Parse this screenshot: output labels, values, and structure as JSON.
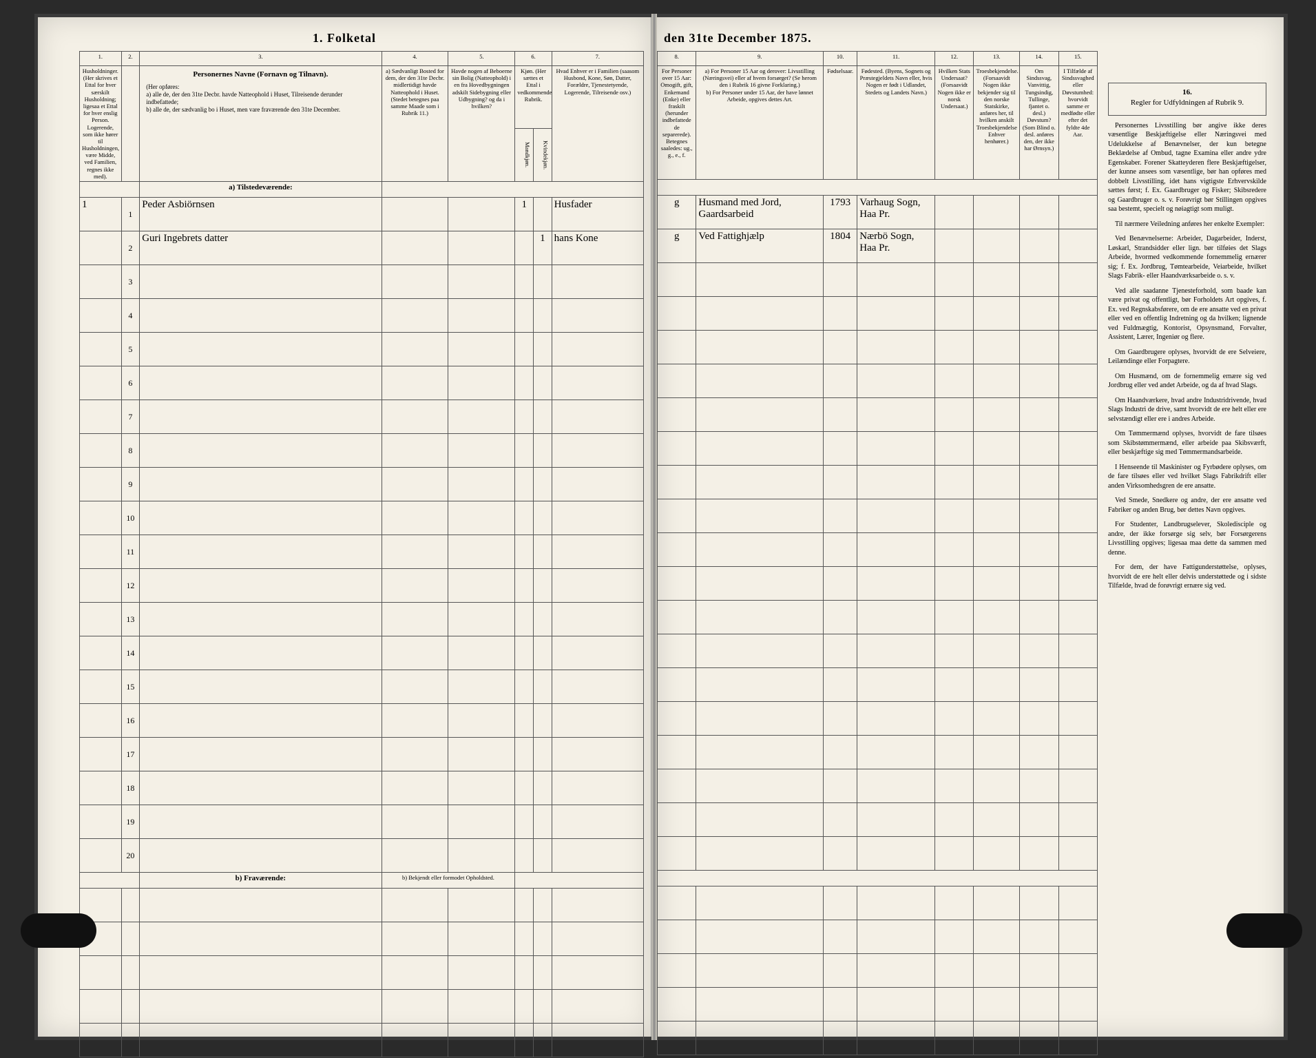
{
  "title_left": "1.  Folketal",
  "title_right": "den 31te December 1875.",
  "columns_left": {
    "c1_num": "1.",
    "c1_head": "Husholdninger. (Her skrives et Ettal for hver særskilt Husholdning; ligesaa et Ettal for hver enslig Person. Logerende, som ikke hører til Husholdningen, være Midde, ved Familien, regnes ikke med).",
    "c2_num": "2.",
    "c2_head": "",
    "c3_num": "3.",
    "c3_head_title": "Personernes Navne (Fornavn og Tilnavn).",
    "c3_head_body": "(Her opføres:\na) alle de, der den 31te Decbr. havde Natteophold i Huset, Tilreisende derunder indbefattede;\nb) alle de, der sædvanlig bo i Huset, men vare fraværende den 31te December.",
    "c4_num": "4.",
    "c4_head": "a) Sædvanligt Bosted for dem, der den 31te Decbr. midlertidigt havde Natteophold i Huset. (Stedet betegnes paa samme Maade som i Rubrik 11.)",
    "c5_num": "5.",
    "c5_head": "Havde nogen af Beboerne sin Bolig (Natteophold) i en fra Hovedbygningen adskilt Sidebygning eller Udbygning? og da i hvilken?",
    "c6_num": "6.",
    "c6_head": "Kjøn. (Her sættes et Ettal i vedkommende Rubrik.",
    "c6_sub_a": "Mandkjøn.",
    "c6_sub_b": "Kvindekjøn.",
    "c7_num": "7.",
    "c7_head": "Hvad Enhver er i Familien (saasom Husbond, Kone, Søn, Datter, Forældre, Tjenestetyende, Logerende, Tilreisende osv.)"
  },
  "columns_right": {
    "c8_num": "8.",
    "c8_head": "For Personer over 15 Aar: Omogift, gift, Enkemand (Enke) eller fraskilt (herunder indbefattede de separerede). Betegnes saaledes: ug., g., e., f.",
    "c9_num": "9.",
    "c9_head": "a) For Personer 15 Aar og derover: Livsstilling (Næringsvei) eller af hvem forsørget? (Se herom den i Rubrik 16 givne Forklaring.)\nb) For Personer under 15 Aar, der have lønnet Arbeide, opgives dettes Art.",
    "c10_num": "10.",
    "c10_head": "Fødselsaar.",
    "c11_num": "11.",
    "c11_head": "Fødested. (Byens, Sognets og Præstegjeldets Navn eller, hvis Nogen er født i Udlandet, Stedets og Landets Navn.)",
    "c12_num": "12.",
    "c12_head": "Hvilken Stats Undersaat? (Forsaavidt Nogen ikke er norsk Undersaat.)",
    "c13_num": "13.",
    "c13_head": "Troesbekjendelse. (Forsaavidt Nogen ikke bekjender sig til den norske Statskirke, anføres her, til hvilken anskilt Troesbekjendelse Enhver henhører.)",
    "c14_num": "14.",
    "c14_head": "Om Sindssvag, Vanvittig, Tungsindig, Tullinge, fjantet o. desl.) Døvstum? (Som Blind o. desl. anføres den, der ikke har Ørnsyn.)",
    "c15_num": "15.",
    "c15_head": "I Tilfælde af Sindssvaghed eller Døvstumhed: hvorvidt samme er medfødte eller efter det fyldte 4de Aar."
  },
  "section_a": "a) Tilstedeværende:",
  "section_b": "b) Fraværende:",
  "section_b_note": "b) Bekjendt eller formodet Opholdsted.",
  "rows": [
    {
      "n": "1",
      "hh": "1",
      "name": "Peder Asbiörnsen",
      "c4": "",
      "c5": "",
      "m": "1",
      "k": "",
      "fam": "Husfader",
      "civ": "g",
      "occ": "Husmand med Jord, Gaardsarbeid",
      "year": "1793",
      "place": "Varhaug Sogn, Haa Pr."
    },
    {
      "n": "2",
      "hh": "",
      "name": "Guri Ingebrets datter",
      "c4": "",
      "c5": "",
      "m": "",
      "k": "1",
      "fam": "hans Kone",
      "civ": "g",
      "occ": "Ved Fattighjælp",
      "year": "1804",
      "place": "Nærbö Sogn, Haa Pr."
    },
    {
      "n": "3"
    },
    {
      "n": "4"
    },
    {
      "n": "5"
    },
    {
      "n": "6"
    },
    {
      "n": "7"
    },
    {
      "n": "8"
    },
    {
      "n": "9"
    },
    {
      "n": "10"
    },
    {
      "n": "11"
    },
    {
      "n": "12"
    },
    {
      "n": "13"
    },
    {
      "n": "14"
    },
    {
      "n": "15"
    },
    {
      "n": "16"
    },
    {
      "n": "17"
    },
    {
      "n": "18"
    },
    {
      "n": "19"
    },
    {
      "n": "20"
    }
  ],
  "blank_rows_b": 5,
  "instructions": {
    "col_num": "16.",
    "head": "Regler for Udfyldningen af Rubrik 9.",
    "paras": [
      "Personernes Livsstilling bør angive ikke deres væsentlige Beskjæftigelse eller Næringsvei med Udelukkelse af Benævnelser, der kun betegne Beklædelse af Ombud, tagne Examina eller andre ydre Egenskaber. Forener Skatteyderen flere Beskjæftigelser, der kunne ansees som væsentlige, bør han opføres med dobbelt Livsstilling, idet hans vigtigste Erhvervskilde sættes først; f. Ex. Gaardbruger og Fisker; Skibsredere og Gaardbruger o. s. v. Forøvrigt bør Stillingen opgives saa bestemt, specielt og nøiagtigt som muligt.",
      "Til nærmere Veiledning anføres her enkelte Exempler:",
      "Ved Benævnelserne: Arbeider, Dagarbeider, Inderst, Løskarl, Strandsidder eller lign. bør tilføies det Slags Arbeide, hvormed vedkommende fornemmelig ernærer sig; f. Ex. Jordbrug, Tømtearbeide, Veiarbeide, hvilket Slags Fabrik- eller Haandværksarbeide o. s. v.",
      "Ved alle saadanne Tjenesteforhold, som baade kan være privat og offentligt, bør Forholdets Art opgives, f. Ex. ved Regnskabsførere, om de ere ansatte ved en privat eller ved en offentlig Indretning og da hvilken; lignende ved Fuldmægtig, Kontorist, Opsynsmand, Forvalter, Assistent, Lærer, Ingeniør og flere.",
      "Om Gaardbrugere oplyses, hvorvidt de ere Selveiere, Leilændinge eller Forpagtere.",
      "Om Husmænd, om de fornemmelig ernære sig ved Jordbrug eller ved andet Arbeide, og da af hvad Slags.",
      "Om Haandværkere, hvad andre Industridrivende, hvad Slags Industri de drive, samt hvorvidt de ere helt eller ere selvstændigt eller ere i andres Arbeide.",
      "Om Tømmermænd oplyses, hvorvidt de fare tilsøes som Skibstømmermænd, eller arbeide paa Skibsværft, eller beskjæftige sig med Tømmermandsarbeide.",
      "I Henseende til Maskinister og Fyrbødere oplyses, om de fare tilsøes eller ved hvilket Slags Fabrikdrift eller anden Virksomhedsgren de ere ansatte.",
      "Ved Smede, Snedkere og andre, der ere ansatte ved Fabriker og anden Brug, bør dettes Navn opgives.",
      "For Studenter, Landbrugselever, Skoledisciple og andre, der ikke forsørge sig selv, bør Forsørgerens Livsstilling opgives; ligesaa maa dette da sammen med denne.",
      "For dem, der have Fattigunderstøttelse, oplyses, hvorvidt de ere helt eller delvis understøttede og i sidste Tilfælde, hvad de forøvrigt ernære sig ved."
    ]
  },
  "style": {
    "page_bg": "#f4f0e6",
    "border": "#555555",
    "dark_bg": "#2a2a2a",
    "handwriting_color": "#2a2418"
  }
}
